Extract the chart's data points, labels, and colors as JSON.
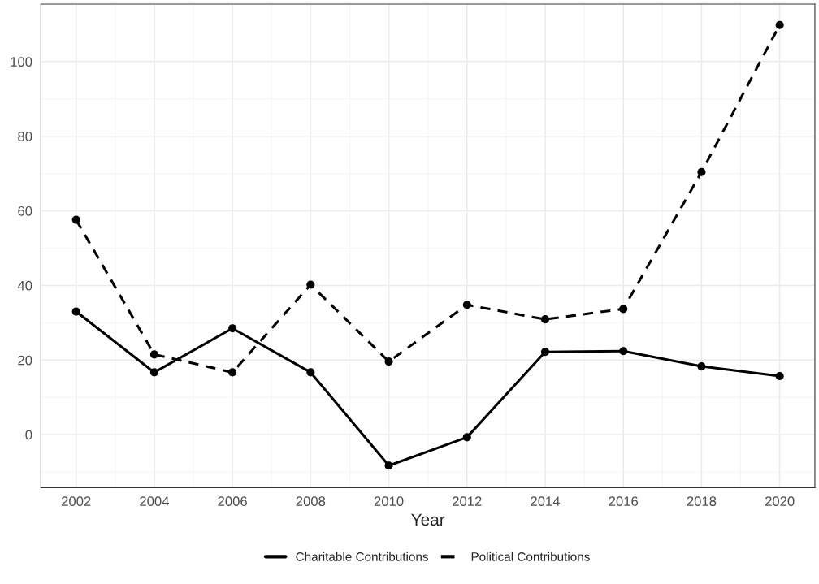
{
  "chart_data": {
    "type": "line",
    "xlabel": "Year",
    "x": [
      2002,
      2004,
      2006,
      2008,
      2010,
      2012,
      2014,
      2016,
      2018,
      2020
    ],
    "series": [
      {
        "name": "Charitable Contributions",
        "color": "#000000",
        "line_style": "solid",
        "values": [
          33.0,
          16.7,
          28.5,
          16.7,
          -8.3,
          -0.7,
          22.2,
          22.4,
          18.3,
          15.7
        ]
      },
      {
        "name": "Political Contributions",
        "color": "#000000",
        "line_style": "dashed",
        "values": [
          57.6,
          21.5,
          16.7,
          40.2,
          19.6,
          34.8,
          30.9,
          33.7,
          70.4,
          109.8
        ]
      }
    ],
    "xlim": [
      2001.1,
      2020.9
    ],
    "xticks": [
      2002,
      2004,
      2006,
      2008,
      2010,
      2012,
      2014,
      2016,
      2018,
      2020
    ],
    "ylim": [
      -14.2,
      115.4
    ],
    "yticks": [
      0,
      20,
      40,
      60,
      80,
      100
    ],
    "marker": "circle",
    "grid": true,
    "legend": "bottom"
  }
}
